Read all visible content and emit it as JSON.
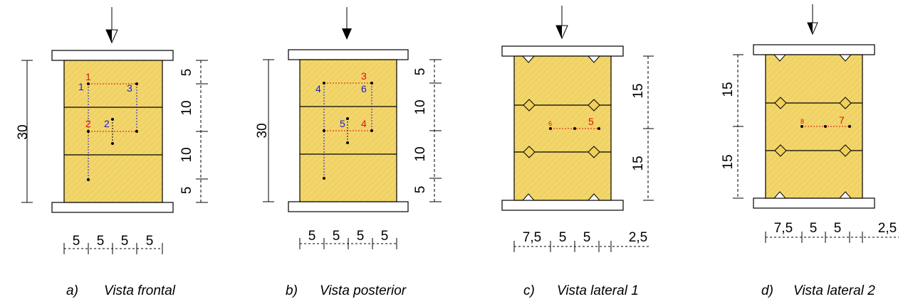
{
  "hatch_color": "#f2d66b",
  "line_red": "#e01010",
  "line_blue": "#1a1ad0",
  "panels": [
    {
      "caption_letter": "a)",
      "caption_text": "Vista frontal",
      "left_dim": "30",
      "right_dims": [
        "5",
        "10",
        "10",
        "5"
      ],
      "bottom_dims": [
        "5",
        "5",
        "5",
        "5"
      ],
      "labels": [
        "1",
        "1",
        "3",
        "2",
        "2"
      ]
    },
    {
      "caption_letter": "b)",
      "caption_text": "Vista posterior",
      "left_dim": "30",
      "right_dims": [
        "5",
        "10",
        "10",
        "5"
      ],
      "bottom_dims": [
        "5",
        "5",
        "5",
        "5"
      ],
      "labels": [
        "3",
        "4",
        "6",
        "5",
        "4"
      ]
    },
    {
      "caption_letter": "c)",
      "caption_text": "Vista lateral 1",
      "right_dims": [
        "15",
        "15"
      ],
      "bottom_dims": [
        "7,5",
        "5",
        "5",
        "2,5"
      ],
      "labels": [
        "6",
        "5"
      ]
    },
    {
      "caption_letter": "d)",
      "caption_text": "Vista lateral 2",
      "left_dims": [
        "15",
        "15"
      ],
      "bottom_dims": [
        "7,5",
        "5",
        "5",
        "2,5"
      ],
      "labels": [
        "8",
        "7"
      ]
    }
  ]
}
